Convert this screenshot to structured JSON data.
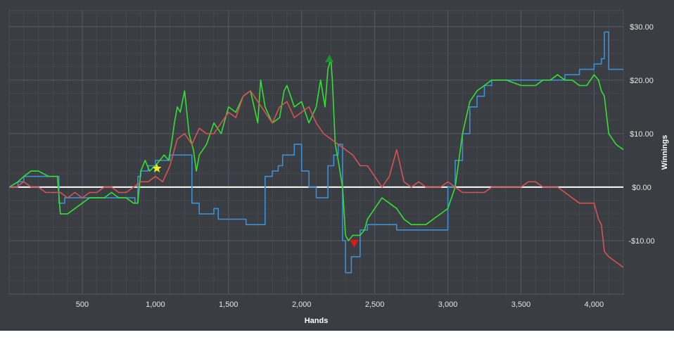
{
  "chart_data": {
    "type": "line",
    "title": "",
    "xlabel": "Hands",
    "ylabel": "Winnings",
    "xlim": [
      0,
      4200
    ],
    "ylim": [
      -20,
      33
    ],
    "x_ticks": [
      500,
      1000,
      1500,
      2000,
      2500,
      3000,
      3500,
      4000
    ],
    "x_tick_labels": [
      "500",
      "1,000",
      "1,500",
      "2,000",
      "2,500",
      "3,000",
      "3,500",
      "4,000"
    ],
    "y_ticks": [
      -10,
      0,
      10,
      20,
      30
    ],
    "y_tick_labels": [
      "-$10.00",
      "$0.00",
      "$10.00",
      "$20.00",
      "$30.00"
    ],
    "y_axis_side": "right",
    "grid": true,
    "zero_line": 0,
    "colors": {
      "background": "#3a3d42",
      "grid": "#4b4f55",
      "zero_line": "#ffffff",
      "blue": "#3d8fd6",
      "green": "#33e033",
      "red": "#d95252"
    },
    "series": [
      {
        "color": "#3d8fd6",
        "step": true,
        "x": [
          0,
          60,
          100,
          150,
          200,
          270,
          330,
          340,
          380,
          440,
          520,
          600,
          700,
          800,
          860,
          880,
          900,
          950,
          1000,
          1050,
          1100,
          1150,
          1250,
          1300,
          1350,
          1400,
          1430,
          1480,
          1550,
          1600,
          1620,
          1650,
          1700,
          1750,
          1800,
          1840,
          1870,
          1900,
          1950,
          2000,
          2050,
          2100,
          2150,
          2180,
          2220,
          2250,
          2280,
          2300,
          2320,
          2340,
          2400,
          2450,
          2500,
          2550,
          2600,
          2650,
          2700,
          2750,
          2800,
          2850,
          2900,
          2950,
          3000,
          3050,
          3100,
          3150,
          3200,
          3250,
          3300,
          3400,
          3500,
          3600,
          3700,
          3800,
          3900,
          4000,
          4050,
          4070,
          4100,
          4150,
          4200
        ],
        "y": [
          0,
          1,
          2,
          2,
          2,
          2,
          2,
          -3,
          -2,
          -2,
          -2,
          -2,
          -2,
          -2,
          -3,
          2,
          3,
          4,
          5,
          5,
          6,
          6,
          -3,
          -5,
          -5,
          -4,
          -6,
          -6,
          -6,
          -6,
          -7,
          -7,
          -7,
          2,
          3,
          4,
          6,
          6,
          8,
          3,
          0,
          -2,
          -2,
          4,
          6,
          8,
          -10,
          -16,
          -16,
          -13,
          -8,
          -7,
          -7,
          -7,
          -7,
          -8,
          -8,
          -8,
          -8,
          -8,
          -8,
          -8,
          0,
          5,
          10,
          15,
          17,
          19,
          20,
          20,
          20,
          20,
          20,
          21,
          22,
          23,
          24,
          29,
          22,
          22,
          22
        ]
      },
      {
        "color": "#33e033",
        "step": false,
        "x": [
          0,
          60,
          100,
          150,
          200,
          270,
          330,
          350,
          400,
          450,
          500,
          550,
          600,
          650,
          700,
          750,
          800,
          850,
          880,
          900,
          930,
          960,
          1000,
          1030,
          1060,
          1090,
          1110,
          1130,
          1150,
          1170,
          1200,
          1230,
          1260,
          1280,
          1300,
          1350,
          1400,
          1450,
          1500,
          1550,
          1600,
          1650,
          1700,
          1720,
          1750,
          1800,
          1850,
          1880,
          1900,
          1950,
          2000,
          2050,
          2100,
          2130,
          2160,
          2180,
          2200,
          2210,
          2230,
          2250,
          2280,
          2300,
          2320,
          2350,
          2400,
          2430,
          2450,
          2500,
          2550,
          2600,
          2650,
          2700,
          2750,
          2800,
          2850,
          2900,
          2950,
          3000,
          3050,
          3100,
          3150,
          3200,
          3250,
          3300,
          3400,
          3500,
          3600,
          3650,
          3700,
          3750,
          3800,
          3850,
          3900,
          3950,
          4000,
          4030,
          4050,
          4070,
          4100,
          4150,
          4200
        ],
        "y": [
          0,
          1,
          2,
          3,
          3,
          2,
          2,
          -5,
          -5,
          -4,
          -3,
          -2,
          -2,
          -2,
          -1,
          -2,
          -2,
          -3,
          -3,
          3,
          5,
          3,
          4,
          5,
          6,
          5,
          8,
          12,
          15,
          14,
          18,
          10,
          7,
          3,
          6,
          8,
          12,
          10,
          15,
          14,
          17,
          18,
          12,
          20,
          15,
          12,
          13,
          18,
          19,
          15,
          16,
          12,
          15,
          20,
          15,
          22,
          24,
          20,
          8,
          5,
          0,
          -9,
          -10,
          -9,
          -9,
          -8,
          -6,
          -4,
          -2,
          -3,
          -4,
          -6,
          -7,
          -7,
          -7,
          -6,
          -5,
          -4,
          0,
          10,
          16,
          18,
          19,
          20,
          20,
          19,
          19,
          20,
          20,
          21,
          20,
          20,
          19,
          19,
          21,
          20,
          18,
          17,
          10,
          8,
          7
        ]
      },
      {
        "color": "#d95252",
        "step": false,
        "x": [
          0,
          50,
          100,
          150,
          200,
          250,
          300,
          350,
          400,
          450,
          500,
          550,
          600,
          650,
          700,
          750,
          800,
          850,
          900,
          950,
          1000,
          1050,
          1100,
          1150,
          1200,
          1250,
          1300,
          1350,
          1400,
          1450,
          1500,
          1550,
          1600,
          1650,
          1700,
          1750,
          1800,
          1850,
          1900,
          1950,
          2000,
          2050,
          2100,
          2150,
          2200,
          2250,
          2300,
          2350,
          2400,
          2450,
          2500,
          2550,
          2600,
          2650,
          2700,
          2750,
          2800,
          2850,
          2900,
          2950,
          3000,
          3050,
          3100,
          3150,
          3200,
          3250,
          3300,
          3350,
          3400,
          3450,
          3500,
          3550,
          3600,
          3650,
          3700,
          3750,
          3800,
          3850,
          3900,
          3950,
          4000,
          4030,
          4050,
          4070,
          4100,
          4150,
          4200
        ],
        "y": [
          0,
          0,
          1,
          0,
          0,
          -1,
          -1,
          -1,
          -2,
          -1,
          -2,
          -1,
          -1,
          0,
          0,
          -1,
          -1,
          0,
          1,
          1,
          2,
          1,
          4,
          9,
          10,
          8,
          11,
          10,
          10,
          12,
          14,
          13,
          17,
          18,
          16,
          14,
          12,
          15,
          16,
          13,
          14,
          15,
          12,
          10,
          9,
          8,
          7,
          6,
          4,
          4,
          2,
          0,
          2,
          7,
          1,
          0,
          1,
          0,
          0,
          0,
          1,
          0,
          -1,
          -1,
          -1,
          -1,
          0,
          0,
          0,
          0,
          0,
          1,
          1,
          0,
          0,
          0,
          -1,
          -2,
          -3,
          -3,
          -3,
          -6,
          -7,
          -12,
          -13,
          -14,
          -15
        ]
      }
    ],
    "markers": [
      {
        "shape": "star",
        "x": 1010,
        "y": 3.5,
        "color": "#f2e82a"
      },
      {
        "shape": "triangle-up",
        "x": 2190,
        "y": 24,
        "color": "#1f8f2f"
      },
      {
        "shape": "triangle-down",
        "x": 2360,
        "y": -10.5,
        "color": "#e01818"
      }
    ]
  }
}
